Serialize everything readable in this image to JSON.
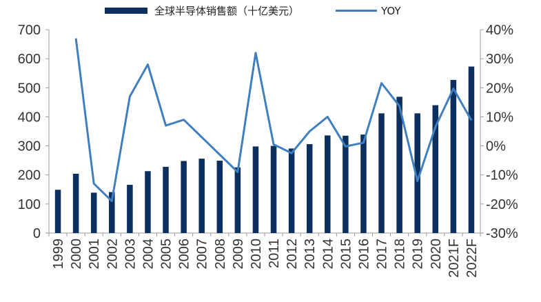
{
  "chart_data": {
    "type": "bar",
    "title": "",
    "xlabel": "",
    "ylabel": "",
    "ylabel_right": "",
    "categories": [
      "1999",
      "2000",
      "2001",
      "2002",
      "2003",
      "2004",
      "2005",
      "2006",
      "2007",
      "2008",
      "2009",
      "2010",
      "2011",
      "2012",
      "2013",
      "2014",
      "2015",
      "2016",
      "2017",
      "2018",
      "2019",
      "2020",
      "2021F",
      "2022F"
    ],
    "series": [
      {
        "name": "全球半导体销售额（十亿美元）",
        "type": "bar",
        "axis": "left",
        "color": "#0b2f5e",
        "values": [
          149,
          204,
          139,
          141,
          166,
          213,
          228,
          248,
          256,
          249,
          226,
          298,
          300,
          291,
          306,
          336,
          335,
          339,
          412,
          469,
          412,
          440,
          527,
          573
        ]
      },
      {
        "name": "YOY",
        "type": "line",
        "axis": "right",
        "color": "#3f7fbf",
        "values": [
          null,
          37,
          -13,
          -19,
          17,
          28,
          7,
          9,
          3,
          -3,
          -9,
          32,
          0.5,
          -2.5,
          5,
          10,
          -0.2,
          1.1,
          21.6,
          13.7,
          -12.1,
          6.5,
          19.7,
          8.8
        ]
      }
    ],
    "ylim": [
      0,
      700
    ],
    "yticks": [
      "0",
      "100",
      "200",
      "300",
      "400",
      "500",
      "600",
      "700"
    ],
    "ylim_right": [
      -30,
      40
    ],
    "yticks_right": [
      "-30%",
      "-20%",
      "-10%",
      "0%",
      "10%",
      "20%",
      "30%",
      "40%"
    ],
    "legend_position": "top",
    "grid": false
  }
}
